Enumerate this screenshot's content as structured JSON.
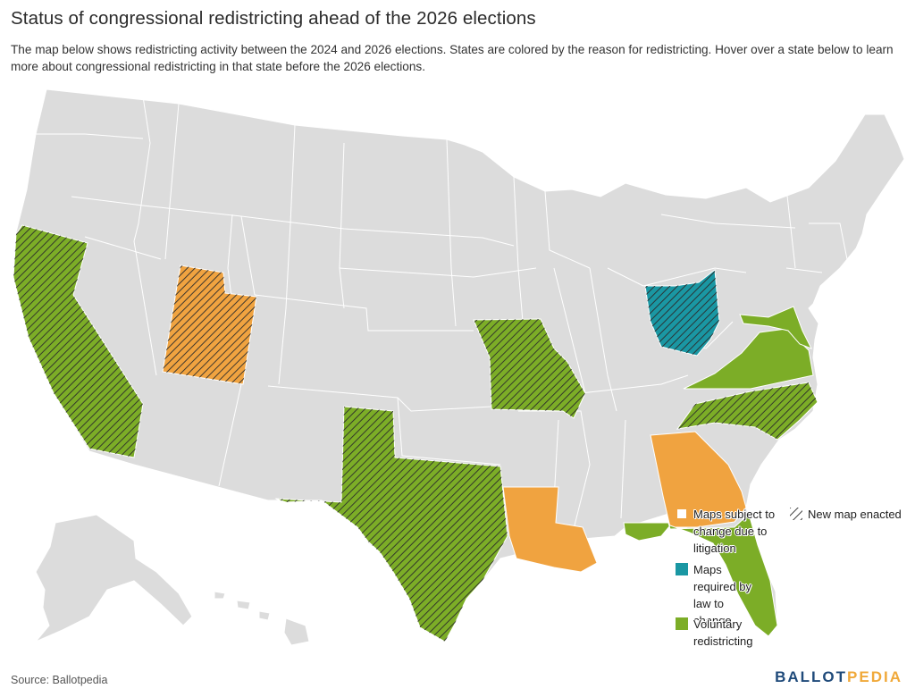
{
  "title": "Status of congressional redistricting ahead of the 2026 elections",
  "subtitle": "The map below shows redistricting activity between the 2024 and 2026 elections. States are colored by the reason for redistricting. Hover over a state below to learn more about congressional redistricting in that state before the 2026 elections.",
  "legend": {
    "litigation": {
      "label": "Maps subject to change due to litigation",
      "color": "#f0a340"
    },
    "required": {
      "label": "Maps required by law to change",
      "color": "#1a97a3"
    },
    "voluntary": {
      "label": "Voluntary redistricting",
      "color": "#7cad27"
    },
    "new_map": {
      "label": "New map enacted"
    }
  },
  "colors": {
    "no_change": "#dcdcdc",
    "border": "#ffffff",
    "hatch": "#2b2b2b"
  },
  "states": [
    {
      "name": "California",
      "category": "voluntary",
      "new_map": true
    },
    {
      "name": "Utah",
      "category": "litigation",
      "new_map": true
    },
    {
      "name": "Texas",
      "category": "voluntary",
      "new_map": true
    },
    {
      "name": "Missouri",
      "category": "voluntary",
      "new_map": true
    },
    {
      "name": "Louisiana",
      "category": "litigation",
      "new_map": false
    },
    {
      "name": "Georgia",
      "category": "litigation",
      "new_map": false
    },
    {
      "name": "Florida",
      "category": "voluntary",
      "new_map": false
    },
    {
      "name": "Ohio",
      "category": "required",
      "new_map": true
    },
    {
      "name": "North Carolina",
      "category": "voluntary",
      "new_map": true
    },
    {
      "name": "Virginia",
      "category": "voluntary",
      "new_map": false
    },
    {
      "name": "Maryland",
      "category": "voluntary",
      "new_map": false
    }
  ],
  "source": "Source: Ballotpedia",
  "logo": {
    "part1": "BALLOT",
    "part2": "PEDIA"
  }
}
